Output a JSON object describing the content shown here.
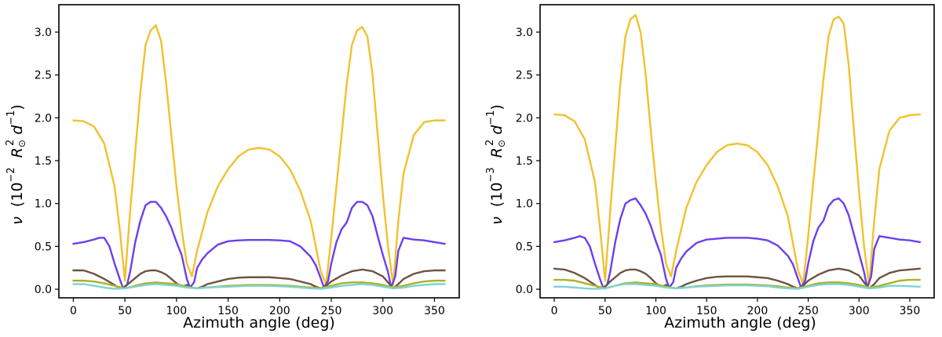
{
  "chart_data": [
    {
      "type": "line",
      "xlabel": "Azimuth angle (deg)",
      "ylabel": {
        "symbol": "ν",
        "open": "(10",
        "exp": "−2",
        "unit_r": "R",
        "unit_r_sub": "⊙",
        "unit_r_sup": "2",
        "unit_d": "d",
        "unit_d_sup": "−1",
        "close": ")"
      },
      "xlim": [
        -14,
        374
      ],
      "ylim": [
        -0.1,
        3.32
      ],
      "xticks": [
        0,
        50,
        100,
        150,
        200,
        250,
        300,
        350
      ],
      "yticks": [
        0.0,
        0.5,
        1.0,
        1.5,
        2.0,
        2.5,
        3.0
      ],
      "ytick_labels": [
        "0.0",
        "0.5",
        "1.0",
        "1.5",
        "2.0",
        "2.5",
        "3.0"
      ],
      "series": [
        {
          "name": "yellow",
          "color": "#f2c12e",
          "x": [
            0,
            10,
            20,
            30,
            40,
            45,
            50,
            55,
            60,
            65,
            70,
            75,
            80,
            85,
            90,
            95,
            100,
            105,
            110,
            115,
            120,
            130,
            140,
            150,
            160,
            170,
            180,
            190,
            200,
            210,
            220,
            230,
            240,
            245,
            250,
            255,
            260,
            265,
            270,
            275,
            280,
            285,
            290,
            295,
            300,
            305,
            310,
            315,
            320,
            330,
            340,
            350,
            360
          ],
          "y": [
            1.97,
            1.96,
            1.9,
            1.7,
            1.2,
            0.7,
            0.1,
            0.9,
            1.6,
            2.3,
            2.85,
            3.02,
            3.08,
            2.9,
            2.4,
            1.8,
            1.2,
            0.7,
            0.3,
            0.15,
            0.45,
            0.9,
            1.2,
            1.4,
            1.55,
            1.63,
            1.65,
            1.63,
            1.55,
            1.4,
            1.15,
            0.8,
            0.2,
            0.06,
            0.6,
            1.2,
            1.8,
            2.4,
            2.85,
            3.02,
            3.06,
            2.95,
            2.5,
            1.8,
            1.1,
            0.5,
            0.05,
            0.8,
            1.35,
            1.8,
            1.95,
            1.97,
            1.97
          ]
        },
        {
          "name": "purple",
          "color": "#6b3ff0",
          "x": [
            0,
            10,
            20,
            25,
            30,
            35,
            40,
            45,
            48,
            52,
            55,
            60,
            65,
            70,
            75,
            80,
            85,
            90,
            95,
            100,
            105,
            110,
            113,
            117,
            120,
            125,
            130,
            140,
            150,
            160,
            170,
            180,
            190,
            200,
            210,
            220,
            230,
            235,
            240,
            243,
            247,
            250,
            255,
            260,
            265,
            270,
            275,
            280,
            285,
            290,
            295,
            300,
            305,
            308,
            312,
            315,
            320,
            330,
            340,
            350,
            360
          ],
          "y": [
            0.53,
            0.55,
            0.58,
            0.6,
            0.6,
            0.5,
            0.3,
            0.12,
            0.02,
            0.05,
            0.2,
            0.55,
            0.8,
            0.98,
            1.02,
            1.02,
            0.95,
            0.85,
            0.72,
            0.55,
            0.4,
            0.12,
            0.02,
            0.08,
            0.25,
            0.35,
            0.42,
            0.52,
            0.56,
            0.57,
            0.575,
            0.575,
            0.575,
            0.57,
            0.56,
            0.5,
            0.38,
            0.28,
            0.12,
            0.02,
            0.1,
            0.3,
            0.55,
            0.7,
            0.78,
            0.95,
            1.02,
            1.02,
            0.98,
            0.85,
            0.62,
            0.4,
            0.2,
            0.02,
            0.15,
            0.45,
            0.6,
            0.58,
            0.57,
            0.55,
            0.53
          ]
        },
        {
          "name": "brown",
          "color": "#6e5440",
          "x": [
            0,
            10,
            20,
            30,
            40,
            45,
            50,
            55,
            60,
            65,
            70,
            75,
            80,
            85,
            90,
            95,
            100,
            105,
            110,
            115,
            120,
            125,
            130,
            140,
            150,
            160,
            170,
            180,
            190,
            200,
            210,
            220,
            230,
            235,
            240,
            245,
            250,
            260,
            270,
            280,
            290,
            300,
            305,
            310,
            315,
            320,
            330,
            340,
            350,
            360
          ],
          "y": [
            0.22,
            0.22,
            0.18,
            0.12,
            0.05,
            0.01,
            0.03,
            0.08,
            0.13,
            0.18,
            0.21,
            0.22,
            0.22,
            0.2,
            0.17,
            0.12,
            0.07,
            0.03,
            0.05,
            0.02,
            0.01,
            0.03,
            0.06,
            0.09,
            0.12,
            0.135,
            0.14,
            0.14,
            0.14,
            0.13,
            0.12,
            0.09,
            0.06,
            0.03,
            0.01,
            0.04,
            0.09,
            0.16,
            0.21,
            0.23,
            0.21,
            0.15,
            0.08,
            0.01,
            0.06,
            0.12,
            0.18,
            0.21,
            0.22,
            0.22
          ]
        },
        {
          "name": "olive",
          "color": "#aab32a",
          "x": [
            0,
            10,
            20,
            30,
            40,
            50,
            60,
            70,
            80,
            90,
            100,
            110,
            120,
            130,
            140,
            150,
            160,
            170,
            180,
            190,
            200,
            210,
            220,
            230,
            240,
            250,
            260,
            270,
            280,
            290,
            300,
            310,
            320,
            330,
            340,
            350,
            360
          ],
          "y": [
            0.1,
            0.1,
            0.09,
            0.07,
            0.04,
            0.01,
            0.04,
            0.07,
            0.08,
            0.07,
            0.06,
            0.03,
            0.01,
            0.02,
            0.03,
            0.04,
            0.045,
            0.05,
            0.05,
            0.05,
            0.045,
            0.04,
            0.03,
            0.02,
            0.01,
            0.04,
            0.07,
            0.08,
            0.08,
            0.07,
            0.05,
            0.02,
            0.04,
            0.07,
            0.09,
            0.1,
            0.1
          ]
        },
        {
          "name": "cyan",
          "color": "#7fd3d3",
          "x": [
            0,
            10,
            20,
            30,
            40,
            50,
            60,
            70,
            80,
            90,
            100,
            110,
            120,
            130,
            140,
            150,
            160,
            170,
            180,
            190,
            200,
            210,
            220,
            230,
            240,
            250,
            260,
            270,
            280,
            290,
            300,
            310,
            320,
            330,
            340,
            350,
            360
          ],
          "y": [
            0.06,
            0.06,
            0.04,
            0.02,
            0.005,
            0.01,
            0.03,
            0.05,
            0.06,
            0.05,
            0.04,
            0.02,
            0.01,
            0.02,
            0.025,
            0.03,
            0.035,
            0.04,
            0.04,
            0.04,
            0.035,
            0.03,
            0.02,
            0.01,
            0.005,
            0.02,
            0.04,
            0.05,
            0.06,
            0.05,
            0.03,
            0.01,
            0.02,
            0.04,
            0.05,
            0.06,
            0.06
          ]
        }
      ]
    },
    {
      "type": "line",
      "xlabel": "Azimuth angle (deg)",
      "ylabel": {
        "symbol": "ν",
        "open": "(10",
        "exp": "−3",
        "unit_r": "R",
        "unit_r_sub": "⊙",
        "unit_r_sup": "2",
        "unit_d": "d",
        "unit_d_sup": "−1",
        "close": ")"
      },
      "xlim": [
        -14,
        374
      ],
      "ylim": [
        -0.1,
        3.32
      ],
      "xticks": [
        0,
        50,
        100,
        150,
        200,
        250,
        300,
        350
      ],
      "yticks": [
        0.0,
        0.5,
        1.0,
        1.5,
        2.0,
        2.5,
        3.0
      ],
      "ytick_labels": [
        "0.0",
        "0.5",
        "1.0",
        "1.5",
        "2.0",
        "2.5",
        "3.0"
      ],
      "series": [
        {
          "name": "yellow",
          "color": "#f2c12e",
          "x": [
            0,
            10,
            20,
            30,
            40,
            45,
            50,
            55,
            60,
            65,
            70,
            75,
            80,
            85,
            90,
            95,
            100,
            105,
            110,
            115,
            120,
            130,
            140,
            150,
            160,
            170,
            180,
            190,
            200,
            210,
            220,
            230,
            240,
            245,
            250,
            255,
            260,
            265,
            270,
            275,
            280,
            285,
            290,
            295,
            300,
            305,
            310,
            315,
            320,
            330,
            340,
            350,
            360
          ],
          "y": [
            2.04,
            2.03,
            1.96,
            1.75,
            1.25,
            0.72,
            0.1,
            0.9,
            1.65,
            2.4,
            2.95,
            3.15,
            3.2,
            3.0,
            2.5,
            1.85,
            1.25,
            0.72,
            0.3,
            0.15,
            0.45,
            0.95,
            1.25,
            1.45,
            1.6,
            1.68,
            1.7,
            1.68,
            1.6,
            1.45,
            1.2,
            0.85,
            0.22,
            0.06,
            0.62,
            1.25,
            1.85,
            2.45,
            2.95,
            3.15,
            3.18,
            3.1,
            2.6,
            1.85,
            1.15,
            0.5,
            0.05,
            0.8,
            1.4,
            1.85,
            2.0,
            2.03,
            2.04
          ]
        },
        {
          "name": "purple",
          "color": "#6b3ff0",
          "x": [
            0,
            10,
            20,
            25,
            30,
            35,
            40,
            45,
            48,
            52,
            55,
            60,
            65,
            70,
            75,
            80,
            85,
            90,
            95,
            100,
            105,
            110,
            113,
            117,
            120,
            125,
            130,
            140,
            150,
            160,
            170,
            180,
            190,
            200,
            210,
            220,
            230,
            235,
            240,
            243,
            247,
            250,
            255,
            260,
            265,
            270,
            275,
            280,
            285,
            290,
            295,
            300,
            305,
            308,
            312,
            315,
            320,
            330,
            340,
            350,
            360
          ],
          "y": [
            0.55,
            0.57,
            0.6,
            0.62,
            0.6,
            0.5,
            0.3,
            0.12,
            0.02,
            0.05,
            0.2,
            0.55,
            0.82,
            1.0,
            1.04,
            1.06,
            0.98,
            0.88,
            0.74,
            0.56,
            0.4,
            0.12,
            0.02,
            0.08,
            0.25,
            0.36,
            0.44,
            0.54,
            0.58,
            0.59,
            0.6,
            0.6,
            0.6,
            0.59,
            0.57,
            0.51,
            0.39,
            0.29,
            0.12,
            0.02,
            0.1,
            0.3,
            0.56,
            0.72,
            0.8,
            0.97,
            1.04,
            1.06,
            1.0,
            0.86,
            0.64,
            0.42,
            0.2,
            0.02,
            0.15,
            0.47,
            0.62,
            0.6,
            0.58,
            0.57,
            0.55
          ]
        },
        {
          "name": "brown",
          "color": "#6e5440",
          "x": [
            0,
            10,
            20,
            30,
            40,
            45,
            50,
            55,
            60,
            65,
            70,
            75,
            80,
            85,
            90,
            95,
            100,
            105,
            110,
            115,
            120,
            125,
            130,
            140,
            150,
            160,
            170,
            180,
            190,
            200,
            210,
            220,
            230,
            235,
            240,
            245,
            250,
            260,
            270,
            280,
            290,
            300,
            305,
            310,
            315,
            320,
            330,
            340,
            350,
            360
          ],
          "y": [
            0.24,
            0.23,
            0.19,
            0.13,
            0.05,
            0.01,
            0.03,
            0.09,
            0.14,
            0.19,
            0.22,
            0.23,
            0.23,
            0.21,
            0.18,
            0.13,
            0.07,
            0.03,
            0.05,
            0.02,
            0.01,
            0.03,
            0.06,
            0.1,
            0.13,
            0.145,
            0.15,
            0.15,
            0.15,
            0.14,
            0.13,
            0.1,
            0.06,
            0.03,
            0.01,
            0.04,
            0.1,
            0.17,
            0.22,
            0.24,
            0.22,
            0.16,
            0.08,
            0.01,
            0.06,
            0.13,
            0.19,
            0.22,
            0.23,
            0.24
          ]
        },
        {
          "name": "olive",
          "color": "#aab32a",
          "x": [
            0,
            10,
            20,
            30,
            40,
            50,
            60,
            70,
            80,
            90,
            100,
            110,
            120,
            130,
            140,
            150,
            160,
            170,
            180,
            190,
            200,
            210,
            220,
            230,
            240,
            250,
            260,
            270,
            280,
            290,
            300,
            310,
            320,
            330,
            340,
            350,
            360
          ],
          "y": [
            0.11,
            0.11,
            0.1,
            0.07,
            0.04,
            0.01,
            0.04,
            0.07,
            0.08,
            0.07,
            0.06,
            0.03,
            0.01,
            0.02,
            0.035,
            0.045,
            0.05,
            0.055,
            0.055,
            0.055,
            0.05,
            0.045,
            0.035,
            0.02,
            0.01,
            0.04,
            0.07,
            0.08,
            0.08,
            0.07,
            0.05,
            0.02,
            0.04,
            0.07,
            0.1,
            0.11,
            0.11
          ]
        },
        {
          "name": "cyan",
          "color": "#7fd3d3",
          "x": [
            0,
            10,
            20,
            30,
            40,
            50,
            60,
            70,
            80,
            90,
            100,
            110,
            120,
            130,
            140,
            150,
            160,
            170,
            180,
            190,
            200,
            210,
            220,
            230,
            240,
            250,
            260,
            270,
            280,
            290,
            300,
            310,
            320,
            330,
            340,
            350,
            360
          ],
          "y": [
            0.03,
            0.03,
            0.02,
            0.01,
            0.005,
            0.01,
            0.04,
            0.06,
            0.06,
            0.05,
            0.04,
            0.02,
            0.01,
            0.02,
            0.03,
            0.035,
            0.04,
            0.045,
            0.045,
            0.045,
            0.04,
            0.035,
            0.02,
            0.01,
            0.005,
            0.03,
            0.05,
            0.06,
            0.06,
            0.05,
            0.03,
            0.01,
            0.02,
            0.04,
            0.04,
            0.035,
            0.03
          ]
        }
      ]
    }
  ]
}
